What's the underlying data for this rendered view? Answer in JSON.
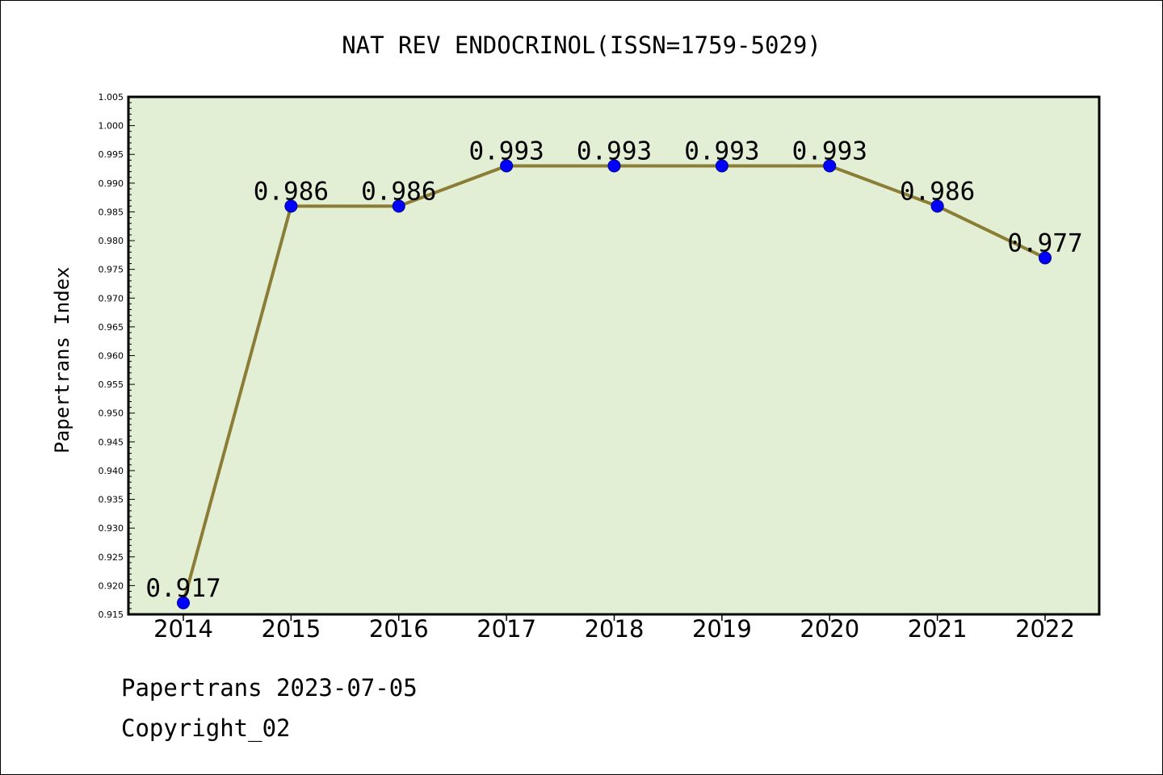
{
  "chart_data": {
    "type": "line",
    "title": "NAT REV ENDOCRINOL(ISSN=1759-5029)",
    "xlabel": "",
    "ylabel": "Papertrans Index",
    "categories": [
      "2014",
      "2015",
      "2016",
      "2017",
      "2018",
      "2019",
      "2020",
      "2021",
      "2022"
    ],
    "values": [
      0.917,
      0.986,
      0.986,
      0.993,
      0.993,
      0.993,
      0.993,
      0.986,
      0.977
    ],
    "data_labels": [
      "0.917",
      "0.986",
      "0.986",
      "0.993",
      "0.993",
      "0.993",
      "0.993",
      "0.986",
      "0.977"
    ],
    "ylim": [
      0.915,
      1.005
    ],
    "yticks": [
      "0.915",
      "0.920",
      "0.925",
      "0.930",
      "0.935",
      "0.940",
      "0.945",
      "0.950",
      "0.955",
      "0.960",
      "0.965",
      "0.970",
      "0.975",
      "0.980",
      "0.985",
      "0.990",
      "0.995",
      "1.000",
      "1.005"
    ],
    "grid": false,
    "colors": {
      "plot_background": "#e2efd5",
      "line": "#8b7d35",
      "marker": "#0000ff",
      "marker_edge": "#00008b"
    }
  },
  "footer": {
    "line1": "Papertrans 2023-07-05",
    "line2": "Copyright_02"
  }
}
